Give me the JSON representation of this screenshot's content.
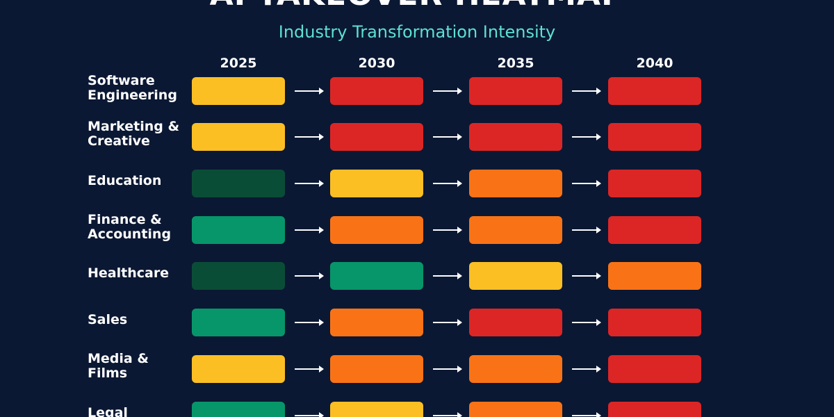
{
  "title": "AI TAKEOVER HEATMAP",
  "subtitle": "Industry Transformation Intensity",
  "colors": {
    "background": "#0b1833",
    "subtitle": "#5ee0d2",
    "level_colors": {
      "dark_green": "#0a4d36",
      "green": "#079669",
      "yellow": "#fbbf24",
      "orange": "#f97316",
      "red": "#dc2626"
    }
  },
  "chart_data": {
    "type": "heatmap",
    "title": "AI TAKEOVER HEATMAP",
    "subtitle": "Industry Transformation Intensity",
    "x": [
      "2025",
      "2030",
      "2035",
      "2040"
    ],
    "y": [
      "Software\nEngineering",
      "Marketing &\nCreative",
      "Education",
      "Finance &\nAccounting",
      "Healthcare",
      "Sales",
      "Media &\nFilms",
      "Legal"
    ],
    "levels": [
      "dark_green",
      "green",
      "yellow",
      "orange",
      "red"
    ],
    "values": [
      [
        "yellow",
        "red",
        "red",
        "red"
      ],
      [
        "yellow",
        "red",
        "red",
        "red"
      ],
      [
        "dark_green",
        "yellow",
        "orange",
        "red"
      ],
      [
        "green",
        "orange",
        "orange",
        "red"
      ],
      [
        "dark_green",
        "green",
        "yellow",
        "orange"
      ],
      [
        "green",
        "orange",
        "red",
        "red"
      ],
      [
        "yellow",
        "orange",
        "orange",
        "red"
      ],
      [
        "green",
        "yellow",
        "orange",
        "red"
      ]
    ],
    "arrows_between_columns": true,
    "grid": false,
    "legend": "none"
  }
}
